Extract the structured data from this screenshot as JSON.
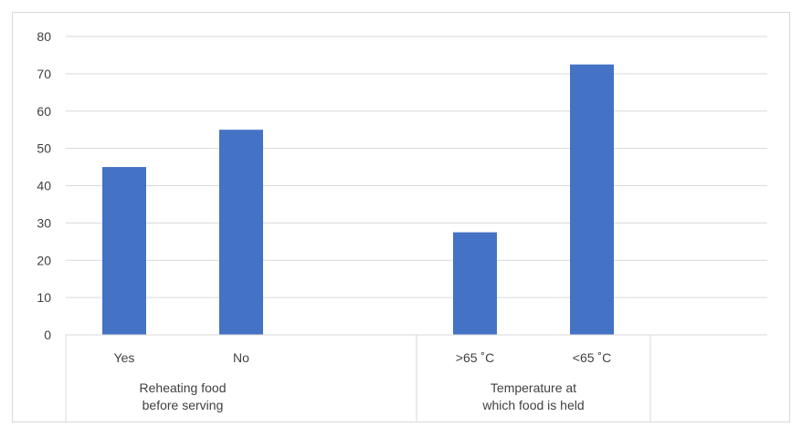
{
  "chart_data": {
    "type": "bar",
    "title": "",
    "xlabel": "",
    "ylabel": "",
    "ylim": [
      0,
      80
    ],
    "yticks": [
      0,
      10,
      20,
      30,
      40,
      50,
      60,
      70,
      80
    ],
    "grid": true,
    "legend": "none",
    "bar_color": "#4472C4",
    "groups": [
      {
        "label_lines": [
          "Reheating food",
          "before serving"
        ],
        "categories": [
          "Yes",
          "No"
        ],
        "values": [
          45,
          55
        ]
      },
      {
        "label_lines": [
          "Temperature at",
          "which food is held"
        ],
        "categories": [
          ">65 ˚C",
          "<65 ˚C"
        ],
        "values": [
          27.5,
          72.5
        ]
      }
    ]
  }
}
